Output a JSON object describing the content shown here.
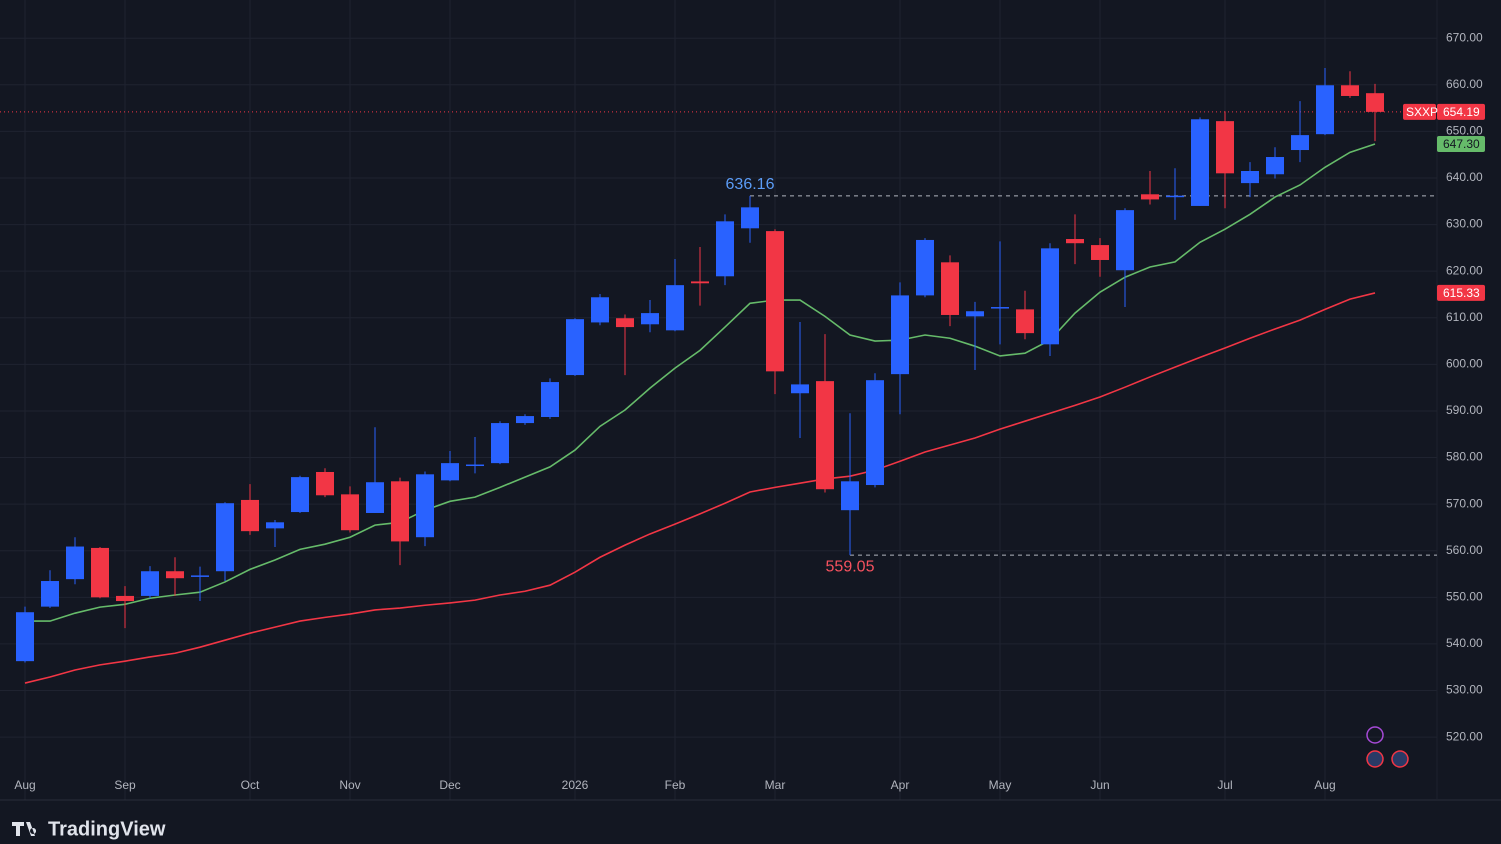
{
  "chart_data": {
    "type": "candlestick",
    "symbol": "SXXP",
    "brand": "TradingView",
    "categories": [
      "Aug",
      null,
      null,
      null,
      "Sep",
      null,
      null,
      null,
      null,
      "Oct",
      null,
      null,
      null,
      "Nov",
      null,
      null,
      null,
      "Dec",
      null,
      null,
      null,
      null,
      "2026",
      null,
      null,
      null,
      "Feb",
      null,
      null,
      null,
      "Mar",
      null,
      null,
      null,
      null,
      "Apr",
      null,
      null,
      null,
      "May",
      null,
      null,
      null,
      "Jun",
      null,
      null,
      null,
      null,
      "Jul",
      null,
      null,
      null,
      "Aug",
      null,
      null
    ],
    "open": [
      536.3,
      548.0,
      553.9,
      560.6,
      550.3,
      550.3,
      555.6,
      554.5,
      555.6,
      570.9,
      564.8,
      568.3,
      576.9,
      572.1,
      568.1,
      574.9,
      562.9,
      575.1,
      578.2,
      578.8,
      587.4,
      588.7,
      597.7,
      609.0,
      609.9,
      608.6,
      607.3,
      617.8,
      618.9,
      629.2,
      628.6,
      593.8,
      596.4,
      568.7,
      574.1,
      597.9,
      614.8,
      621.9,
      610.3,
      612.0,
      611.8,
      604.3,
      626.9,
      625.6,
      620.2,
      636.5,
      636.0,
      634.0,
      652.2,
      638.9,
      640.8,
      646.0,
      649.4,
      659.9,
      658.2
    ],
    "high": [
      548.0,
      555.8,
      562.9,
      560.8,
      552.4,
      556.7,
      558.6,
      556.6,
      570.4,
      574.3,
      566.6,
      576.1,
      577.7,
      573.8,
      586.5,
      575.7,
      577.0,
      581.4,
      584.4,
      587.8,
      589.3,
      597.0,
      609.9,
      615.1,
      610.7,
      613.8,
      622.6,
      625.2,
      632.2,
      636.16,
      629.0,
      609.1,
      606.5,
      589.5,
      598.1,
      617.6,
      627.1,
      623.4,
      613.4,
      626.4,
      615.8,
      626.0,
      632.2,
      627.1,
      633.5,
      641.5,
      642.1,
      653.0,
      654.3,
      643.4,
      646.6,
      656.5,
      663.6,
      662.9,
      660.2
    ],
    "low": [
      536.0,
      547.7,
      552.8,
      549.8,
      543.4,
      549.8,
      550.3,
      549.2,
      553.5,
      563.4,
      560.8,
      568.1,
      571.5,
      563.9,
      568.1,
      556.9,
      561.0,
      574.9,
      576.6,
      578.6,
      587.0,
      588.3,
      597.5,
      608.4,
      597.7,
      606.9,
      607.1,
      612.6,
      617.0,
      626.1,
      593.6,
      584.2,
      572.5,
      559.05,
      573.6,
      589.3,
      614.4,
      608.2,
      598.8,
      604.3,
      605.4,
      601.8,
      621.5,
      618.8,
      612.3,
      634.3,
      631.0,
      634.0,
      633.5,
      635.9,
      639.9,
      643.4,
      649.2,
      657.2,
      647.9
    ],
    "close": [
      546.8,
      553.5,
      560.9,
      550.0,
      549.2,
      555.6,
      554.1,
      554.7,
      570.2,
      564.2,
      566.1,
      575.8,
      571.9,
      564.4,
      574.7,
      562.0,
      576.4,
      578.8,
      578.5,
      587.4,
      588.9,
      596.2,
      609.7,
      614.4,
      608.0,
      611.0,
      617.0,
      617.4,
      630.7,
      633.7,
      598.5,
      595.7,
      573.2,
      574.9,
      596.6,
      614.8,
      626.7,
      610.6,
      611.4,
      612.3,
      606.7,
      624.9,
      626.0,
      622.4,
      633.1,
      635.4,
      636.2,
      652.6,
      641.0,
      641.5,
      644.5,
      649.2,
      659.9,
      657.6,
      654.19
    ],
    "up_color": "#2962ff",
    "down_color": "#f23645",
    "overlays": [
      {
        "color": "#66bb6a",
        "values": [
          544.9,
          544.9,
          546.6,
          547.9,
          548.5,
          549.8,
          550.5,
          551.1,
          553.3,
          556.0,
          558.0,
          560.3,
          561.4,
          562.9,
          565.5,
          566.1,
          568.7,
          570.6,
          571.5,
          573.6,
          575.8,
          578.0,
          581.6,
          586.7,
          590.2,
          594.9,
          599.2,
          603.0,
          608.0,
          613.1,
          613.8,
          613.8,
          610.3,
          606.3,
          605.0,
          605.2,
          606.3,
          605.6,
          603.9,
          601.8,
          602.4,
          605.2,
          611.0,
          615.5,
          618.7,
          620.9,
          622.0,
          626.2,
          629.0,
          632.2,
          635.9,
          638.5,
          642.3,
          645.5,
          647.3
        ]
      },
      {
        "color": "#f23645",
        "values": [
          531.6,
          532.9,
          534.4,
          535.5,
          536.3,
          537.2,
          538.0,
          539.3,
          540.8,
          542.3,
          543.6,
          544.9,
          545.7,
          546.4,
          547.3,
          547.7,
          548.3,
          548.8,
          549.4,
          550.5,
          551.3,
          552.6,
          555.4,
          558.6,
          561.2,
          563.6,
          565.7,
          567.9,
          570.2,
          572.6,
          573.6,
          574.5,
          575.4,
          576.0,
          577.3,
          579.2,
          581.2,
          582.7,
          584.2,
          586.1,
          587.8,
          589.5,
          591.2,
          593.0,
          595.1,
          597.3,
          599.4,
          601.5,
          603.5,
          605.6,
          607.6,
          609.5,
          611.8,
          614.0,
          615.33
        ]
      }
    ],
    "price_tags": [
      {
        "value": 654.19,
        "label": "654.19",
        "color": "#f23645"
      },
      {
        "value": 647.3,
        "label": "647.30",
        "color": "#66bb6a"
      },
      {
        "value": 615.33,
        "label": "615.33",
        "color": "#f23645"
      }
    ],
    "annotations": [
      {
        "value": 636.16,
        "at": 29,
        "color": "#5b9cf6"
      },
      {
        "value": 559.05,
        "at": 33,
        "color": "#f7525f"
      }
    ],
    "ylim": [
      506.5,
      678.2
    ],
    "yticks": [
      {
        "value": 520,
        "label": "520.00"
      },
      {
        "value": 530,
        "label": "530.00"
      },
      {
        "value": 540,
        "label": "540.00"
      },
      {
        "value": 550,
        "label": "550.00"
      },
      {
        "value": 560,
        "label": "560.00"
      },
      {
        "value": 570,
        "label": "570.00"
      },
      {
        "value": 580,
        "label": "580.00"
      },
      {
        "value": 590,
        "label": "590.00"
      },
      {
        "value": 600,
        "label": "600.00"
      },
      {
        "value": 610,
        "label": "610.00"
      },
      {
        "value": 620,
        "label": "620.00"
      },
      {
        "value": 630,
        "label": "630.00"
      },
      {
        "value": 640,
        "label": "640.00"
      },
      {
        "value": 650,
        "label": "650.00"
      },
      {
        "value": 660,
        "label": "660.00"
      },
      {
        "value": 670,
        "label": "670.00"
      }
    ],
    "grid": true
  }
}
